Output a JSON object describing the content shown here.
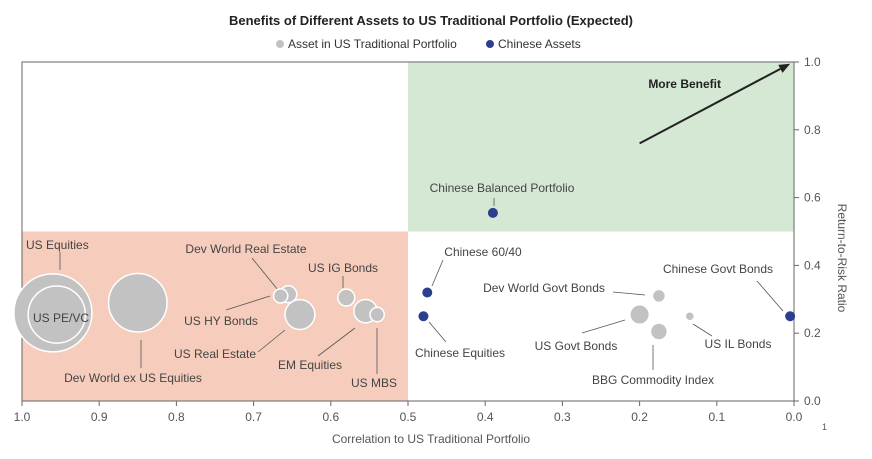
{
  "colors": {
    "us_asset": "#c2c2c2",
    "us_asset_stroke": "#ffffff",
    "chinese_asset": "#2b3f8f",
    "upper_right_shade": "#d5e8d4",
    "lower_left_shade": "#f6cdbd",
    "axis": "#666666",
    "leader": "#555555"
  },
  "chart_data": {
    "type": "scatter",
    "title": "Benefits of Different Assets to US Traditional Portfolio (Expected)",
    "xlabel": "Correlation to US Traditional Portfolio",
    "ylabel": "Return-to-Risk Ratio",
    "xlim": [
      1.0,
      0.0
    ],
    "ylim": [
      0.0,
      1.0
    ],
    "x_reversed": true,
    "x_ticks": [
      "1.0",
      "0.9",
      "0.8",
      "0.7",
      "0.6",
      "0.5",
      "0.4",
      "0.3",
      "0.2",
      "0.1",
      "0.0"
    ],
    "y_ticks": [
      "0.0",
      "0.2",
      "0.4",
      "0.6",
      "0.8",
      "1.0"
    ],
    "y_axis_side": "right",
    "footnote": "1",
    "legend": [
      {
        "label": "Asset in US Traditional Portfolio",
        "color": "#c2c2c2"
      },
      {
        "label": "Chinese Assets",
        "color": "#2b3f8f"
      }
    ],
    "regions": [
      {
        "name": "upper-right",
        "x_range": [
          0.5,
          0.0
        ],
        "y_range": [
          0.5,
          1.0
        ],
        "color": "#d5e8d4"
      },
      {
        "name": "lower-left",
        "x_range": [
          1.0,
          0.5
        ],
        "y_range": [
          0.0,
          0.5
        ],
        "color": "#f6cdbd"
      }
    ],
    "arrow": {
      "label": "More Benefit",
      "from": [
        0.2,
        0.76
      ],
      "to": [
        0.005,
        0.995
      ]
    },
    "series": [
      {
        "name": "Asset in US Traditional Portfolio",
        "points": [
          {
            "label": "US Equities",
            "x": 0.96,
            "y": 0.26,
            "size": 60
          },
          {
            "label": "US PE/VC",
            "x": 0.955,
            "y": 0.255,
            "size": 44
          },
          {
            "label": "Dev World ex US Equities",
            "x": 0.85,
            "y": 0.29,
            "size": 45
          },
          {
            "label": "Dev World Real Estate",
            "x": 0.665,
            "y": 0.31,
            "size": 11
          },
          {
            "label": "US HY Bonds",
            "x": 0.655,
            "y": 0.315,
            "size": 13
          },
          {
            "label": "US Real Estate",
            "x": 0.64,
            "y": 0.255,
            "size": 23
          },
          {
            "label": "US IG Bonds",
            "x": 0.58,
            "y": 0.305,
            "size": 13
          },
          {
            "label": "EM Equities",
            "x": 0.555,
            "y": 0.265,
            "size": 18
          },
          {
            "label": "US MBS",
            "x": 0.54,
            "y": 0.255,
            "size": 11
          },
          {
            "label": "Dev World Govt Bonds",
            "x": 0.175,
            "y": 0.31,
            "size": 10
          },
          {
            "label": "US Govt Bonds",
            "x": 0.2,
            "y": 0.255,
            "size": 15
          },
          {
            "label": "BBG Commodity Index",
            "x": 0.175,
            "y": 0.205,
            "size": 13
          },
          {
            "label": "US IL Bonds",
            "x": 0.135,
            "y": 0.25,
            "size": 7
          }
        ]
      },
      {
        "name": "Chinese Assets",
        "points": [
          {
            "label": "Chinese Balanced Portfolio",
            "x": 0.39,
            "y": 0.555
          },
          {
            "label": "Chinese 60/40",
            "x": 0.475,
            "y": 0.32
          },
          {
            "label": "Chinese Equities",
            "x": 0.48,
            "y": 0.25
          },
          {
            "label": "Chinese Govt Bonds",
            "x": 0.005,
            "y": 0.25
          }
        ]
      }
    ]
  }
}
